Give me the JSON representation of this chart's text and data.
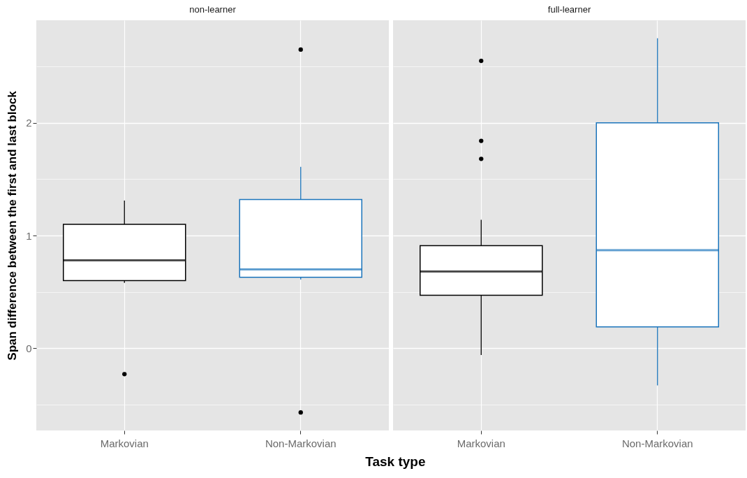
{
  "chart_data": [
    {
      "type": "box",
      "title": "non-learner",
      "xlabel": "Task type",
      "ylabel": "Span difference between the first and last block",
      "categories": [
        "Markovian",
        "Non-Markovian"
      ],
      "colors": [
        "#000000",
        "#1b75bc"
      ],
      "boxes": [
        {
          "low": 0.58,
          "q1": 0.6,
          "median": 0.78,
          "q3": 1.1,
          "high": 1.31,
          "outliers": [
            -0.23
          ]
        },
        {
          "low": 0.61,
          "q1": 0.63,
          "median": 0.7,
          "q3": 1.32,
          "high": 1.61,
          "outliers": [
            2.65,
            -0.57
          ]
        }
      ],
      "ylim": [
        -0.73,
        2.91
      ],
      "yticks": [
        {
          "value": -0.5,
          "label": null
        },
        0,
        {
          "value": 0.5,
          "label": null
        },
        1,
        {
          "value": 1.5,
          "label": null
        },
        2,
        {
          "value": 2.5,
          "label": null
        }
      ],
      "grid": true
    },
    {
      "type": "box",
      "title": "full-learner",
      "categories": [
        "Markovian",
        "Non-Markovian"
      ],
      "colors": [
        "#000000",
        "#1b75bc"
      ],
      "boxes": [
        {
          "low": -0.06,
          "q1": 0.47,
          "median": 0.68,
          "q3": 0.91,
          "high": 1.14,
          "outliers": [
            2.55,
            1.84,
            1.68
          ]
        },
        {
          "low": -0.33,
          "q1": 0.19,
          "median": 0.87,
          "q3": 2.0,
          "high": 2.75
        }
      ],
      "ylim": [
        -0.73,
        2.91
      ],
      "yticks": [
        {
          "value": -0.5,
          "label": null
        },
        0,
        {
          "value": 0.5,
          "label": null
        },
        1,
        {
          "value": 1.5,
          "label": null
        },
        2,
        {
          "value": 2.5,
          "label": null
        }
      ],
      "grid": true,
      "tick_labels": "x"
    }
  ]
}
